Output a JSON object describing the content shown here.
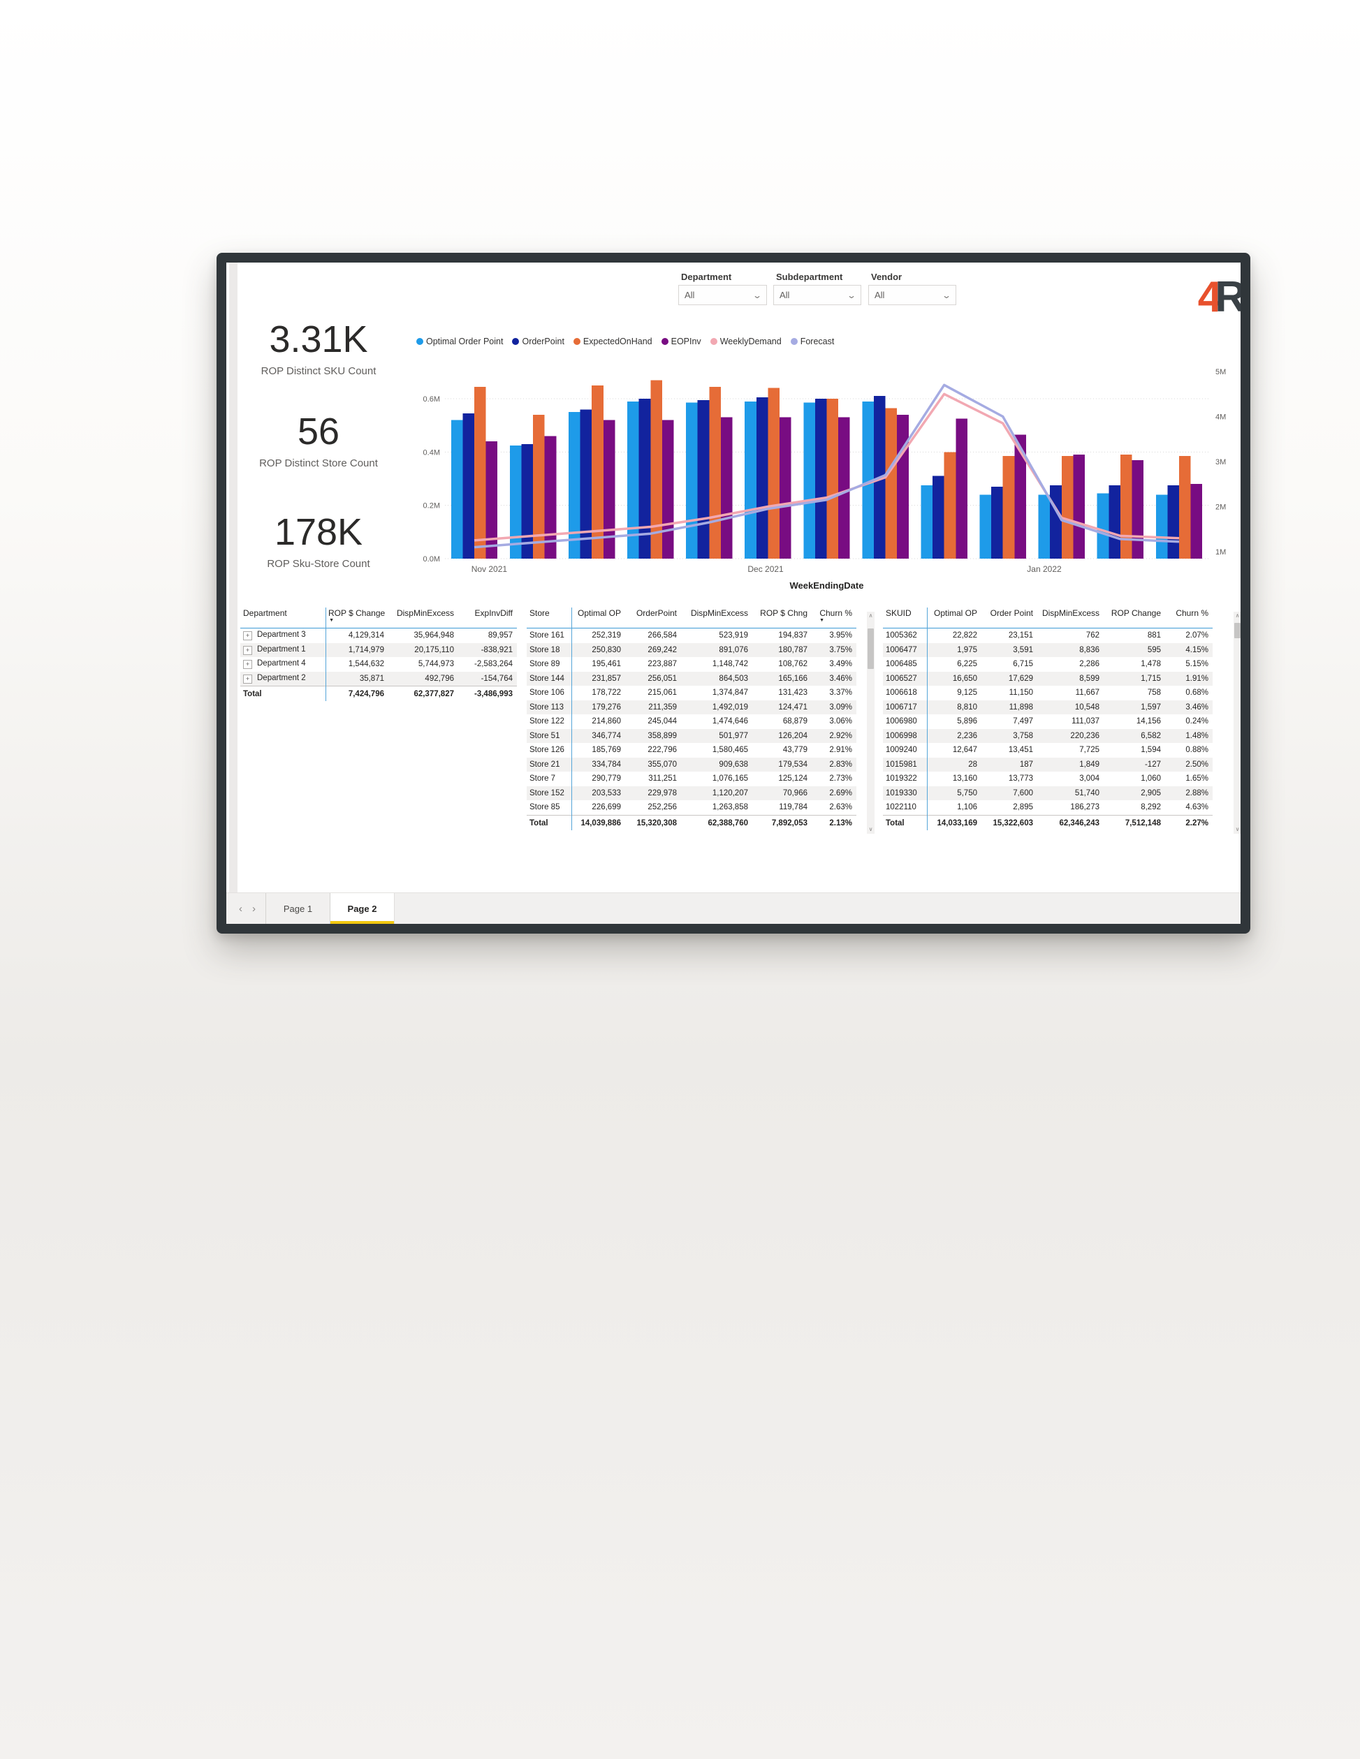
{
  "app": {
    "accent_yellow": "#F2C811"
  },
  "slicers": [
    {
      "label": "Department",
      "value": "All"
    },
    {
      "label": "Subdepartment",
      "value": "All"
    },
    {
      "label": "Vendor",
      "value": "All"
    }
  ],
  "logo": {
    "char1": "4",
    "char1_color": "#E8512D",
    "char2": "R",
    "char2_color": "#3A4146"
  },
  "kpis": [
    {
      "value": "3.31K",
      "label": "ROP Distinct SKU Count"
    },
    {
      "value": "56",
      "label": "ROP Distinct Store Count"
    },
    {
      "value": "178K",
      "label": "ROP Sku-Store Count"
    }
  ],
  "chart_data": {
    "type": "bar",
    "subtype": "clustered-column-with-lines",
    "title": "",
    "xlabel": "WeekEndingDate",
    "x_tick_labels": [
      "Nov 2021",
      "Dec 2021",
      "Jan 2022"
    ],
    "x_tick_positions": [
      0.058,
      0.42,
      0.785
    ],
    "n_groups": 13,
    "left_axis": {
      "tick_labels": [
        "0.0M",
        "0.2M",
        "0.4M",
        "0.6M"
      ],
      "values": [
        0,
        0.2,
        0.4,
        0.6
      ],
      "max": 0.72
    },
    "right_axis": {
      "tick_labels": [
        "1M",
        "2M",
        "3M",
        "4M",
        "5M"
      ],
      "values": [
        1,
        2,
        3,
        4,
        5
      ]
    },
    "legend_position": "top",
    "grid": "dotted-horizontal",
    "legend": [
      {
        "name": "Optimal Order Point",
        "color": "#1E9BE9"
      },
      {
        "name": "OrderPoint",
        "color": "#12239E"
      },
      {
        "name": "ExpectedOnHand",
        "color": "#E66C37"
      },
      {
        "name": "EOPInv",
        "color": "#780C82"
      },
      {
        "name": "WeeklyDemand",
        "color": "#F2A8B2"
      },
      {
        "name": "Forecast",
        "color": "#A5ABE2"
      }
    ],
    "bar_series": [
      {
        "name": "Optimal Order Point",
        "color": "#1E9BE9",
        "axis": "left",
        "values": [
          0.52,
          0.425,
          0.55,
          0.59,
          0.585,
          0.59,
          0.585,
          0.59,
          0.275,
          0.24,
          0.24,
          0.245,
          0.24
        ]
      },
      {
        "name": "OrderPoint",
        "color": "#12239E",
        "axis": "left",
        "values": [
          0.545,
          0.43,
          0.56,
          0.6,
          0.595,
          0.605,
          0.6,
          0.61,
          0.31,
          0.27,
          0.275,
          0.275,
          0.275
        ]
      },
      {
        "name": "ExpectedOnHand",
        "color": "#E66C37",
        "axis": "left",
        "values": [
          0.645,
          0.54,
          0.65,
          0.67,
          0.645,
          0.64,
          0.6,
          0.565,
          0.4,
          0.385,
          0.385,
          0.39,
          0.385
        ]
      },
      {
        "name": "EOPInv",
        "color": "#780C82",
        "axis": "left",
        "values": [
          0.44,
          0.46,
          0.52,
          0.52,
          0.53,
          0.53,
          0.53,
          0.54,
          0.525,
          0.465,
          0.39,
          0.37,
          0.28
        ]
      }
    ],
    "line_series": [
      {
        "name": "WeeklyDemand",
        "color": "#F2A8B2",
        "axis": "right",
        "values": [
          1.25,
          1.35,
          1.45,
          1.55,
          1.75,
          2.0,
          2.2,
          2.65,
          4.5,
          3.85,
          1.75,
          1.35,
          1.3
        ]
      },
      {
        "name": "Forecast",
        "color": "#A5ABE2",
        "axis": "right",
        "values": [
          1.1,
          1.2,
          1.3,
          1.4,
          1.65,
          1.95,
          2.15,
          2.7,
          4.7,
          4.0,
          1.7,
          1.28,
          1.22
        ]
      }
    ]
  },
  "tables": {
    "department": {
      "headers": [
        "Department",
        "ROP $ Change",
        "DispMinExcess",
        "ExpInvDiff"
      ],
      "sorted_by": "ROP $ Change",
      "sort_glyph": "▼",
      "rows": [
        [
          "Department 3",
          "4,129,314",
          "35,964,948",
          "89,957"
        ],
        [
          "Department 1",
          "1,714,979",
          "20,175,110",
          "-838,921"
        ],
        [
          "Department 4",
          "1,544,632",
          "5,744,973",
          "-2,583,264"
        ],
        [
          "Department 2",
          "35,871",
          "492,796",
          "-154,764"
        ]
      ],
      "total": [
        "Total",
        "7,424,796",
        "62,377,827",
        "-3,486,993"
      ]
    },
    "store": {
      "headers": [
        "Store",
        "Optimal OP",
        "OrderPoint",
        "DispMinExcess",
        "ROP $ Chng",
        "Churn %"
      ],
      "sorted_by": "Churn %",
      "sort_glyph": "▼",
      "rows": [
        [
          "Store 161",
          "252,319",
          "266,584",
          "523,919",
          "194,837",
          "3.95%"
        ],
        [
          "Store 18",
          "250,830",
          "269,242",
          "891,076",
          "180,787",
          "3.75%"
        ],
        [
          "Store 89",
          "195,461",
          "223,887",
          "1,148,742",
          "108,762",
          "3.49%"
        ],
        [
          "Store 144",
          "231,857",
          "256,051",
          "864,503",
          "165,166",
          "3.46%"
        ],
        [
          "Store 106",
          "178,722",
          "215,061",
          "1,374,847",
          "131,423",
          "3.37%"
        ],
        [
          "Store 113",
          "179,276",
          "211,359",
          "1,492,019",
          "124,471",
          "3.09%"
        ],
        [
          "Store 122",
          "214,860",
          "245,044",
          "1,474,646",
          "68,879",
          "3.06%"
        ],
        [
          "Store 51",
          "346,774",
          "358,899",
          "501,977",
          "126,204",
          "2.92%"
        ],
        [
          "Store 126",
          "185,769",
          "222,796",
          "1,580,465",
          "43,779",
          "2.91%"
        ],
        [
          "Store 21",
          "334,784",
          "355,070",
          "909,638",
          "179,534",
          "2.83%"
        ],
        [
          "Store 7",
          "290,779",
          "311,251",
          "1,076,165",
          "125,124",
          "2.73%"
        ],
        [
          "Store 152",
          "203,533",
          "229,978",
          "1,120,207",
          "70,966",
          "2.69%"
        ],
        [
          "Store 85",
          "226,699",
          "252,256",
          "1,263,858",
          "119,784",
          "2.63%"
        ]
      ],
      "total": [
        "Total",
        "14,039,886",
        "15,320,308",
        "62,388,760",
        "7,892,053",
        "2.13%"
      ]
    },
    "sku": {
      "headers": [
        "SKUID",
        "Optimal OP",
        "Order Point",
        "DispMinExcess",
        "ROP Change",
        "Churn %"
      ],
      "sorted_by": "",
      "sort_glyph": "",
      "rows": [
        [
          "1005362",
          "22,822",
          "23,151",
          "762",
          "881",
          "2.07%"
        ],
        [
          "1006477",
          "1,975",
          "3,591",
          "8,836",
          "595",
          "4.15%"
        ],
        [
          "1006485",
          "6,225",
          "6,715",
          "2,286",
          "1,478",
          "5.15%"
        ],
        [
          "1006527",
          "16,650",
          "17,629",
          "8,599",
          "1,715",
          "1.91%"
        ],
        [
          "1006618",
          "9,125",
          "11,150",
          "11,667",
          "758",
          "0.68%"
        ],
        [
          "1006717",
          "8,810",
          "11,898",
          "10,548",
          "1,597",
          "3.46%"
        ],
        [
          "1006980",
          "5,896",
          "7,497",
          "111,037",
          "14,156",
          "0.24%"
        ],
        [
          "1006998",
          "2,236",
          "3,758",
          "220,236",
          "6,582",
          "1.48%"
        ],
        [
          "1009240",
          "12,647",
          "13,451",
          "7,725",
          "1,594",
          "0.88%"
        ],
        [
          "1015981",
          "28",
          "187",
          "1,849",
          "-127",
          "2.50%"
        ],
        [
          "1019322",
          "13,160",
          "13,773",
          "3,004",
          "1,060",
          "1.65%"
        ],
        [
          "1019330",
          "5,750",
          "7,600",
          "51,740",
          "2,905",
          "2.88%"
        ],
        [
          "1022110",
          "1,106",
          "2,895",
          "186,273",
          "8,292",
          "4.63%"
        ]
      ],
      "total": [
        "Total",
        "14,033,169",
        "15,322,603",
        "62,346,243",
        "7,512,148",
        "2.27%"
      ]
    }
  },
  "scrollbar": {
    "up": "∧",
    "down": "∨"
  },
  "pager": {
    "prev": "‹",
    "next": "›",
    "tabs": [
      {
        "label": "Page 1",
        "active": false
      },
      {
        "label": "Page 2",
        "active": true
      }
    ]
  }
}
